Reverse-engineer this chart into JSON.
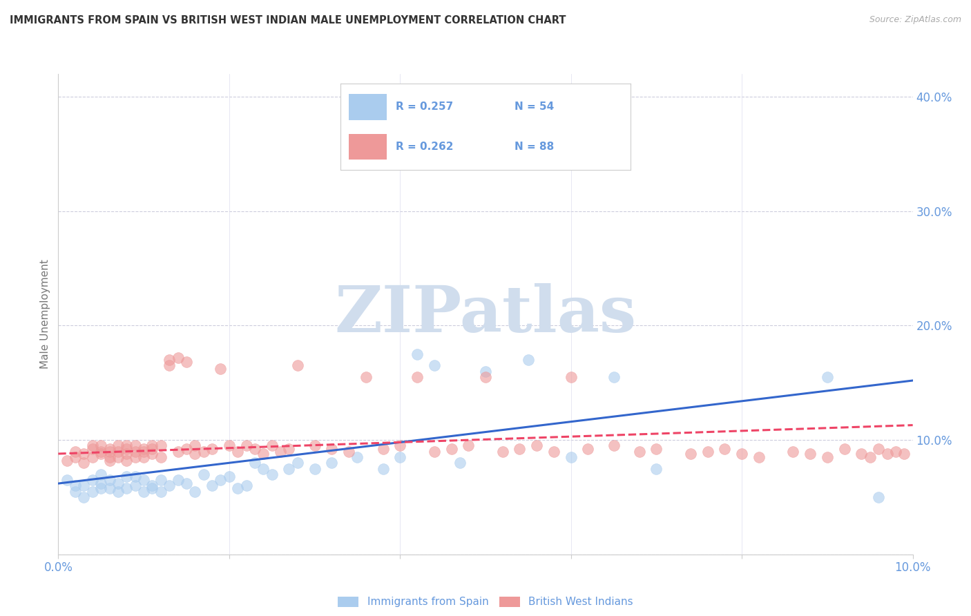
{
  "title": "IMMIGRANTS FROM SPAIN VS BRITISH WEST INDIAN MALE UNEMPLOYMENT CORRELATION CHART",
  "source": "Source: ZipAtlas.com",
  "ylabel": "Male Unemployment",
  "xlabel": "",
  "legend_label1": "Immigrants from Spain",
  "legend_label2": "British West Indians",
  "R1": "0.257",
  "N1": "54",
  "R2": "0.262",
  "N2": "88",
  "color_blue": "#aaccee",
  "color_pink": "#ee9999",
  "color_blue_line": "#3366cc",
  "color_pink_line": "#ee4466",
  "color_axis_labels": "#6699dd",
  "watermark_color": "#d0dded",
  "xlim": [
    0.0,
    0.1
  ],
  "ylim": [
    0.0,
    0.42
  ],
  "xticks": [
    0.0,
    0.02,
    0.04,
    0.06,
    0.08,
    0.1
  ],
  "yticks_right": [
    0.1,
    0.2,
    0.3,
    0.4
  ],
  "blue_scatter_x": [
    0.001,
    0.002,
    0.002,
    0.003,
    0.003,
    0.004,
    0.004,
    0.005,
    0.005,
    0.005,
    0.006,
    0.006,
    0.007,
    0.007,
    0.008,
    0.008,
    0.009,
    0.009,
    0.01,
    0.01,
    0.011,
    0.011,
    0.012,
    0.012,
    0.013,
    0.014,
    0.015,
    0.016,
    0.017,
    0.018,
    0.019,
    0.02,
    0.021,
    0.022,
    0.023,
    0.024,
    0.025,
    0.027,
    0.028,
    0.03,
    0.032,
    0.035,
    0.038,
    0.04,
    0.042,
    0.044,
    0.047,
    0.05,
    0.055,
    0.06,
    0.065,
    0.07,
    0.09,
    0.096
  ],
  "blue_scatter_y": [
    0.065,
    0.055,
    0.06,
    0.06,
    0.05,
    0.055,
    0.065,
    0.058,
    0.062,
    0.07,
    0.058,
    0.065,
    0.055,
    0.062,
    0.068,
    0.058,
    0.06,
    0.068,
    0.055,
    0.065,
    0.06,
    0.058,
    0.065,
    0.055,
    0.06,
    0.065,
    0.062,
    0.055,
    0.07,
    0.06,
    0.065,
    0.068,
    0.058,
    0.06,
    0.08,
    0.075,
    0.07,
    0.075,
    0.08,
    0.075,
    0.08,
    0.085,
    0.075,
    0.085,
    0.175,
    0.165,
    0.08,
    0.16,
    0.17,
    0.085,
    0.155,
    0.075,
    0.155,
    0.05
  ],
  "pink_scatter_x": [
    0.001,
    0.002,
    0.002,
    0.003,
    0.003,
    0.004,
    0.004,
    0.004,
    0.005,
    0.005,
    0.005,
    0.006,
    0.006,
    0.006,
    0.006,
    0.007,
    0.007,
    0.007,
    0.008,
    0.008,
    0.008,
    0.008,
    0.009,
    0.009,
    0.009,
    0.01,
    0.01,
    0.01,
    0.011,
    0.011,
    0.011,
    0.012,
    0.012,
    0.013,
    0.013,
    0.014,
    0.014,
    0.015,
    0.015,
    0.016,
    0.016,
    0.017,
    0.018,
    0.019,
    0.02,
    0.021,
    0.022,
    0.023,
    0.024,
    0.025,
    0.026,
    0.027,
    0.028,
    0.03,
    0.032,
    0.034,
    0.036,
    0.038,
    0.04,
    0.042,
    0.044,
    0.046,
    0.048,
    0.05,
    0.052,
    0.054,
    0.056,
    0.058,
    0.06,
    0.062,
    0.065,
    0.068,
    0.07,
    0.074,
    0.076,
    0.078,
    0.08,
    0.082,
    0.086,
    0.088,
    0.09,
    0.092,
    0.094,
    0.095,
    0.096,
    0.097,
    0.098,
    0.099
  ],
  "pink_scatter_y": [
    0.082,
    0.09,
    0.085,
    0.088,
    0.08,
    0.092,
    0.085,
    0.095,
    0.09,
    0.095,
    0.088,
    0.092,
    0.085,
    0.09,
    0.082,
    0.095,
    0.09,
    0.085,
    0.092,
    0.088,
    0.095,
    0.082,
    0.09,
    0.095,
    0.085,
    0.092,
    0.085,
    0.09,
    0.095,
    0.088,
    0.092,
    0.085,
    0.095,
    0.17,
    0.165,
    0.09,
    0.172,
    0.092,
    0.168,
    0.088,
    0.095,
    0.09,
    0.092,
    0.162,
    0.095,
    0.09,
    0.095,
    0.092,
    0.088,
    0.095,
    0.09,
    0.092,
    0.165,
    0.095,
    0.092,
    0.09,
    0.155,
    0.092,
    0.095,
    0.155,
    0.09,
    0.092,
    0.095,
    0.155,
    0.09,
    0.092,
    0.095,
    0.09,
    0.155,
    0.092,
    0.095,
    0.09,
    0.092,
    0.088,
    0.09,
    0.092,
    0.088,
    0.085,
    0.09,
    0.088,
    0.085,
    0.092,
    0.088,
    0.085,
    0.092,
    0.088,
    0.09,
    0.088
  ]
}
